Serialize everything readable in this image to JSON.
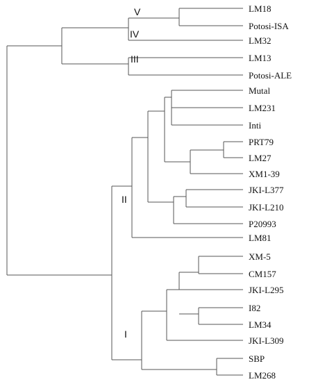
{
  "leaves": [
    "LM18",
    "Potosi-ISA",
    "LM32",
    "LM13",
    "Potosi-ALE",
    "Mutal",
    "LM231",
    "Inti",
    "PRT79",
    "LM27",
    "XM1-39",
    "JKI-L377",
    "JKI-L210",
    "P20993",
    "LM81",
    "XM-5",
    "CM157",
    "JKI-L295",
    "I82",
    "LM34",
    "JKI-L309",
    "SBP",
    "LM268"
  ],
  "clades": [
    "V",
    "IV",
    "III",
    "II",
    "I"
  ],
  "colors": {
    "branch": "#555555",
    "text": "#111111"
  }
}
